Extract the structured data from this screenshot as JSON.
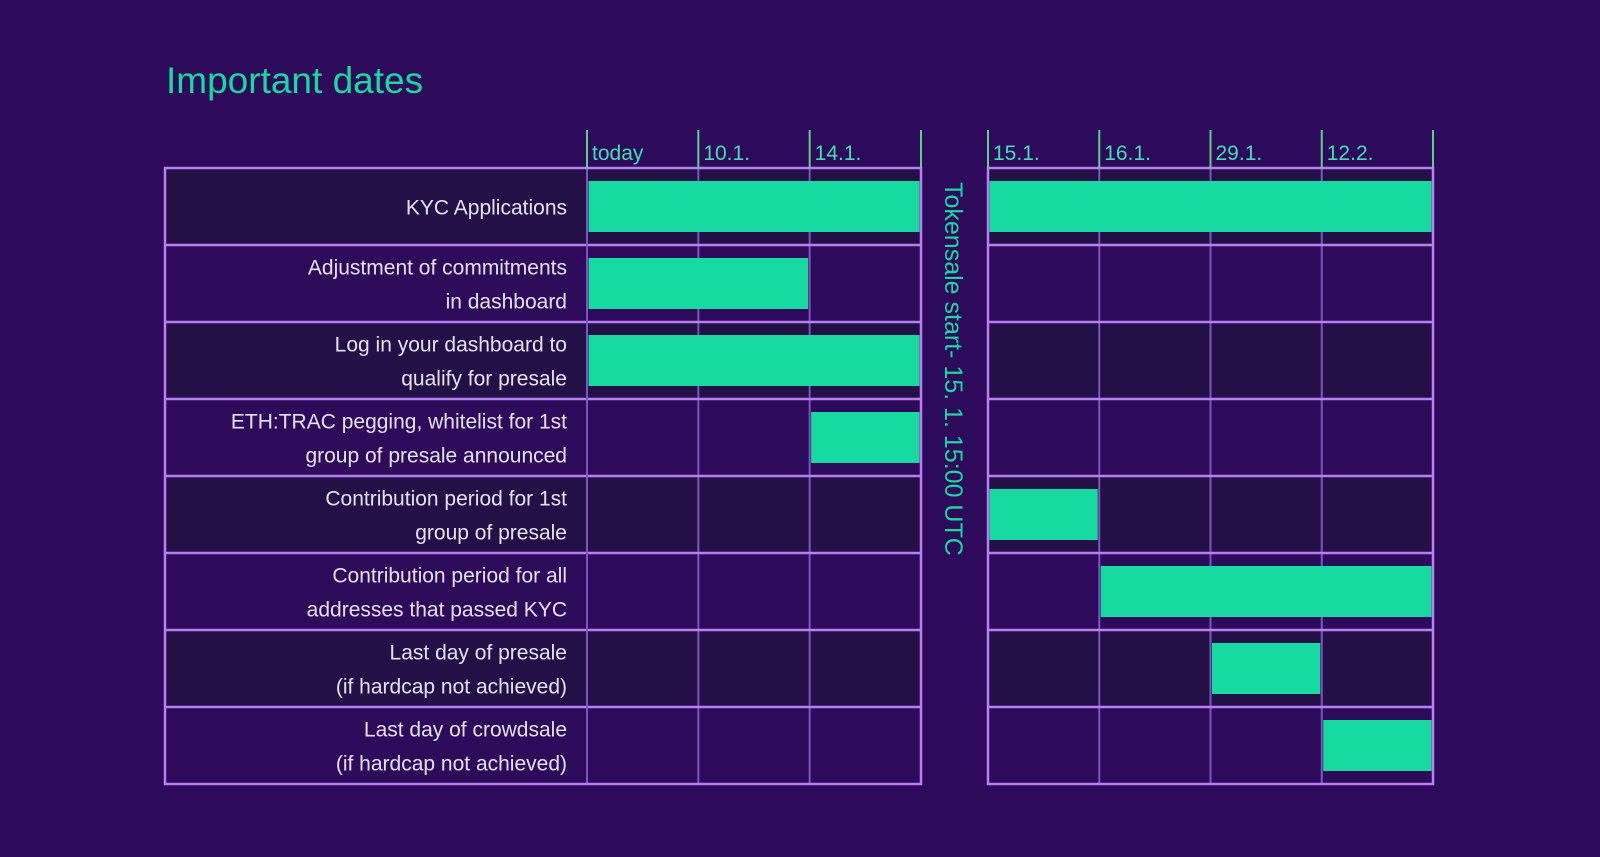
{
  "colors": {
    "background": "#2d0a5a",
    "row_alt": "#231046",
    "border": "#b77ff1",
    "gridline": "#7c55bd",
    "header_tick": "#5fcf84",
    "bar": "#16dba0",
    "title": "#16dba0",
    "label": "#e6e0ef",
    "date": "#3fe0b1",
    "divider": "#16dba0"
  },
  "chart_data": {
    "type": "gantt",
    "title": "Important dates",
    "divider_label": "Tokensale start- 15. 1. 15:00 UTC",
    "columns_left": [
      "today",
      "10.1.",
      "14.1."
    ],
    "columns_right": [
      "15.1.",
      "16.1.",
      "29.1.",
      "12.2."
    ],
    "rows": [
      {
        "lines": [
          "KYC Applications"
        ],
        "bars": [
          {
            "panel": "left",
            "start": 0,
            "end": 3
          },
          {
            "panel": "right",
            "start": 0,
            "end": 4
          }
        ]
      },
      {
        "lines": [
          "Adjustment of commitments",
          "in dashboard"
        ],
        "bars": [
          {
            "panel": "left",
            "start": 0,
            "end": 2
          }
        ]
      },
      {
        "lines": [
          "Log in your dashboard to",
          "qualify for presale"
        ],
        "bars": [
          {
            "panel": "left",
            "start": 0,
            "end": 3
          }
        ]
      },
      {
        "lines": [
          "ETH:TRAC pegging, whitelist for 1st",
          "group of presale announced"
        ],
        "bars": [
          {
            "panel": "left",
            "start": 2,
            "end": 3
          }
        ]
      },
      {
        "lines": [
          "Contribution period for 1st",
          "group of presale"
        ],
        "bars": [
          {
            "panel": "right",
            "start": 0,
            "end": 1
          }
        ]
      },
      {
        "lines": [
          "Contribution period for all",
          "addresses that passed KYC"
        ],
        "bars": [
          {
            "panel": "right",
            "start": 1,
            "end": 4
          }
        ]
      },
      {
        "lines": [
          "Last day of presale",
          "(if hardcap not achieved)"
        ],
        "bars": [
          {
            "panel": "right",
            "start": 2,
            "end": 3
          }
        ]
      },
      {
        "lines": [
          "Last day of crowdsale",
          "(if hardcap not achieved)"
        ],
        "bars": [
          {
            "panel": "right",
            "start": 3,
            "end": 4
          }
        ]
      }
    ]
  }
}
